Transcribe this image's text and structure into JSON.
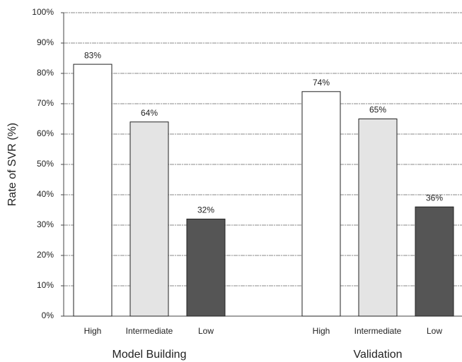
{
  "chart_data": {
    "type": "bar",
    "ylabel": "Rate of SVR (%)",
    "ylim": [
      0,
      100
    ],
    "yticks": [
      {
        "value": 0,
        "label": "0%"
      },
      {
        "value": 10,
        "label": "10%"
      },
      {
        "value": 20,
        "label": "20%"
      },
      {
        "value": 30,
        "label": "30%"
      },
      {
        "value": 40,
        "label": "40%"
      },
      {
        "value": 50,
        "label": "50%"
      },
      {
        "value": 60,
        "label": "60%"
      },
      {
        "value": 70,
        "label": "70%"
      },
      {
        "value": 80,
        "label": "80%"
      },
      {
        "value": 90,
        "label": "90%"
      },
      {
        "value": 100,
        "label": "100%"
      }
    ],
    "grid": true,
    "colors": [
      "#ffffff",
      "#e4e4e4",
      "#555555"
    ],
    "groups": [
      {
        "name": "Model Building",
        "categories": [
          "High",
          "Intermediate",
          "Low"
        ],
        "values": [
          83,
          64,
          32
        ],
        "value_labels": [
          "83%",
          "64%",
          "32%"
        ]
      },
      {
        "name": "Validation",
        "categories": [
          "High",
          "Intermediate",
          "Low"
        ],
        "values": [
          74,
          65,
          36
        ],
        "value_labels": [
          "74%",
          "65%",
          "36%"
        ]
      }
    ]
  }
}
